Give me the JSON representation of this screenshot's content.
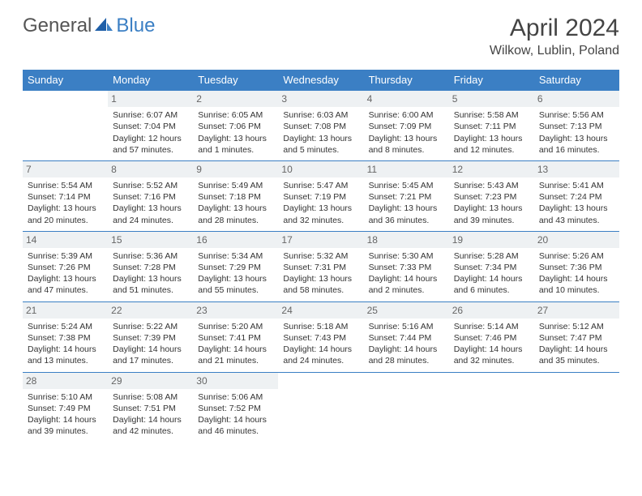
{
  "brand": {
    "text1": "General",
    "text2": "Blue"
  },
  "title": "April 2024",
  "location": "Wilkow, Lublin, Poland",
  "colors": {
    "header_bg": "#3b7fc4",
    "header_fg": "#ffffff",
    "daynum_bg": "#eef1f3",
    "row_border": "#3b7fc4",
    "text": "#333333",
    "page_bg": "#ffffff"
  },
  "typography": {
    "month_title_pt": 30,
    "location_pt": 16,
    "weekday_pt": 13,
    "cell_pt": 10.5,
    "daynum_pt": 12
  },
  "weekdays": [
    "Sunday",
    "Monday",
    "Tuesday",
    "Wednesday",
    "Thursday",
    "Friday",
    "Saturday"
  ],
  "weeks": [
    [
      null,
      {
        "n": "1",
        "sr": "6:07 AM",
        "ss": "7:04 PM",
        "dl": "12 hours and 57 minutes."
      },
      {
        "n": "2",
        "sr": "6:05 AM",
        "ss": "7:06 PM",
        "dl": "13 hours and 1 minutes."
      },
      {
        "n": "3",
        "sr": "6:03 AM",
        "ss": "7:08 PM",
        "dl": "13 hours and 5 minutes."
      },
      {
        "n": "4",
        "sr": "6:00 AM",
        "ss": "7:09 PM",
        "dl": "13 hours and 8 minutes."
      },
      {
        "n": "5",
        "sr": "5:58 AM",
        "ss": "7:11 PM",
        "dl": "13 hours and 12 minutes."
      },
      {
        "n": "6",
        "sr": "5:56 AM",
        "ss": "7:13 PM",
        "dl": "13 hours and 16 minutes."
      }
    ],
    [
      {
        "n": "7",
        "sr": "5:54 AM",
        "ss": "7:14 PM",
        "dl": "13 hours and 20 minutes."
      },
      {
        "n": "8",
        "sr": "5:52 AM",
        "ss": "7:16 PM",
        "dl": "13 hours and 24 minutes."
      },
      {
        "n": "9",
        "sr": "5:49 AM",
        "ss": "7:18 PM",
        "dl": "13 hours and 28 minutes."
      },
      {
        "n": "10",
        "sr": "5:47 AM",
        "ss": "7:19 PM",
        "dl": "13 hours and 32 minutes."
      },
      {
        "n": "11",
        "sr": "5:45 AM",
        "ss": "7:21 PM",
        "dl": "13 hours and 36 minutes."
      },
      {
        "n": "12",
        "sr": "5:43 AM",
        "ss": "7:23 PM",
        "dl": "13 hours and 39 minutes."
      },
      {
        "n": "13",
        "sr": "5:41 AM",
        "ss": "7:24 PM",
        "dl": "13 hours and 43 minutes."
      }
    ],
    [
      {
        "n": "14",
        "sr": "5:39 AM",
        "ss": "7:26 PM",
        "dl": "13 hours and 47 minutes."
      },
      {
        "n": "15",
        "sr": "5:36 AM",
        "ss": "7:28 PM",
        "dl": "13 hours and 51 minutes."
      },
      {
        "n": "16",
        "sr": "5:34 AM",
        "ss": "7:29 PM",
        "dl": "13 hours and 55 minutes."
      },
      {
        "n": "17",
        "sr": "5:32 AM",
        "ss": "7:31 PM",
        "dl": "13 hours and 58 minutes."
      },
      {
        "n": "18",
        "sr": "5:30 AM",
        "ss": "7:33 PM",
        "dl": "14 hours and 2 minutes."
      },
      {
        "n": "19",
        "sr": "5:28 AM",
        "ss": "7:34 PM",
        "dl": "14 hours and 6 minutes."
      },
      {
        "n": "20",
        "sr": "5:26 AM",
        "ss": "7:36 PM",
        "dl": "14 hours and 10 minutes."
      }
    ],
    [
      {
        "n": "21",
        "sr": "5:24 AM",
        "ss": "7:38 PM",
        "dl": "14 hours and 13 minutes."
      },
      {
        "n": "22",
        "sr": "5:22 AM",
        "ss": "7:39 PM",
        "dl": "14 hours and 17 minutes."
      },
      {
        "n": "23",
        "sr": "5:20 AM",
        "ss": "7:41 PM",
        "dl": "14 hours and 21 minutes."
      },
      {
        "n": "24",
        "sr": "5:18 AM",
        "ss": "7:43 PM",
        "dl": "14 hours and 24 minutes."
      },
      {
        "n": "25",
        "sr": "5:16 AM",
        "ss": "7:44 PM",
        "dl": "14 hours and 28 minutes."
      },
      {
        "n": "26",
        "sr": "5:14 AM",
        "ss": "7:46 PM",
        "dl": "14 hours and 32 minutes."
      },
      {
        "n": "27",
        "sr": "5:12 AM",
        "ss": "7:47 PM",
        "dl": "14 hours and 35 minutes."
      }
    ],
    [
      {
        "n": "28",
        "sr": "5:10 AM",
        "ss": "7:49 PM",
        "dl": "14 hours and 39 minutes."
      },
      {
        "n": "29",
        "sr": "5:08 AM",
        "ss": "7:51 PM",
        "dl": "14 hours and 42 minutes."
      },
      {
        "n": "30",
        "sr": "5:06 AM",
        "ss": "7:52 PM",
        "dl": "14 hours and 46 minutes."
      },
      null,
      null,
      null,
      null
    ]
  ],
  "labels": {
    "sunrise": "Sunrise:",
    "sunset": "Sunset:",
    "daylight": "Daylight:"
  }
}
